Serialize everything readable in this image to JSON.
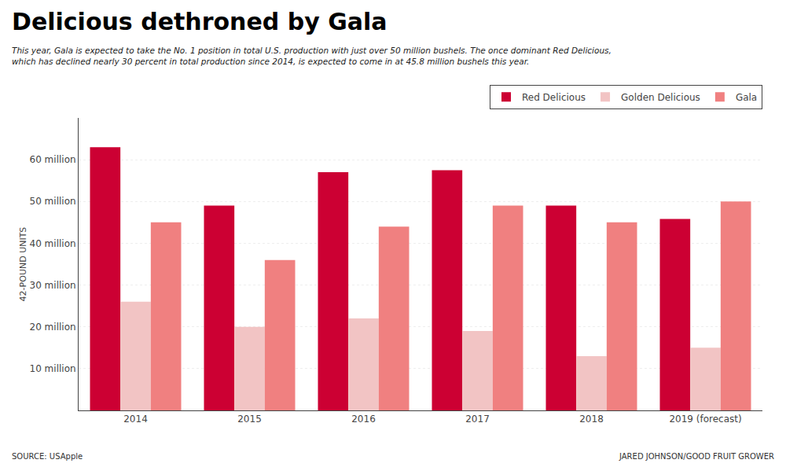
{
  "chart_data": {
    "type": "bar",
    "title": "Delicious dethroned by Gala",
    "subtitle": "This year, Gala is expected to take the No. 1 position in total U.S. production with just over 50 million bushels. The once dominant Red Delicious,\nwhich has declined nearly 30 percent in total production since 2014, is expected to come in at 45.8 million bushels this year.",
    "ylabel": "42-POUND UNITS",
    "annotations": [
      "SOURCE: USApple",
      "JARED JOHNSON/GOOD FRUIT GROWER"
    ],
    "categories": [
      "2014",
      "2015",
      "2016",
      "2017",
      "2018",
      "2019 (forecast)"
    ],
    "series": [
      {
        "name": "Red Delicious",
        "color": "#CC0033",
        "values": [
          63.0,
          49.0,
          57.0,
          57.5,
          49.0,
          45.8
        ]
      },
      {
        "name": "Golden Delicious",
        "color": "#F2C4C4",
        "values": [
          26.0,
          20.0,
          22.0,
          19.0,
          13.0,
          15.0
        ]
      },
      {
        "name": "Gala",
        "color": "#F08080",
        "values": [
          45.0,
          36.0,
          44.0,
          49.0,
          45.0,
          50.0
        ]
      }
    ],
    "ylim": [
      0,
      70
    ],
    "yticks": [
      {
        "value": 10,
        "label": "10 million"
      },
      {
        "value": 20,
        "label": "20 million"
      },
      {
        "value": 30,
        "label": "30 million"
      },
      {
        "value": 40,
        "label": "40 million"
      },
      {
        "value": 50,
        "label": "50 million"
      },
      {
        "value": 60,
        "label": "60 million"
      }
    ],
    "grid": true,
    "legend": "upper right"
  }
}
